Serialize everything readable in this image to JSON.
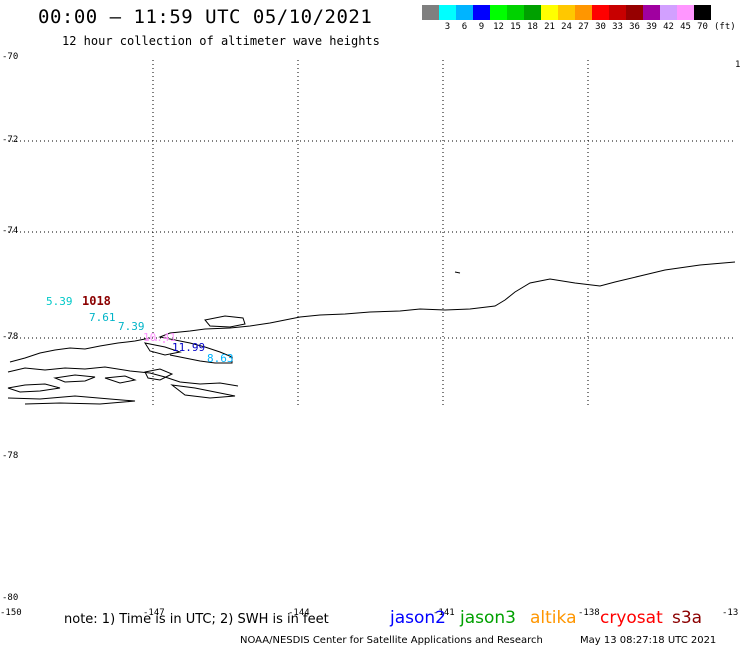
{
  "title": "00:00 – 11:59 UTC 05/10/2021",
  "subtitle": "12 hour collection of altimeter wave heights",
  "legend": {
    "colors": [
      "#7f7f7f",
      "#00ffff",
      "#00b4ff",
      "#0000ff",
      "#00ff00",
      "#00d200",
      "#00a000",
      "#ffff00",
      "#ffc800",
      "#ff9600",
      "#ff0000",
      "#c80000",
      "#960000",
      "#a000a0",
      "#d2a0ff",
      "#ff96ff",
      "#000000"
    ],
    "labels": [
      "",
      "3",
      "6",
      "9",
      "12",
      "15",
      "18",
      "21",
      "24",
      "27",
      "30",
      "33",
      "36",
      "39",
      "42",
      "45",
      "70"
    ],
    "unit": "(ft)"
  },
  "lat_labels": [
    "-70",
    "-72",
    "-74",
    "-76",
    "-78",
    "-78",
    "-80"
  ],
  "lon_labels": [
    "-150",
    "-147",
    "-144",
    "-141",
    "-138",
    "-13"
  ],
  "corner_label": "1",
  "observations": [
    {
      "value": "5.39",
      "color": "#00c8c8"
    },
    {
      "value": "1018",
      "color": "#8b0000"
    },
    {
      "value": "7.61",
      "color": "#00b4c8"
    },
    {
      "value": "7.39",
      "color": "#00b4c8"
    },
    {
      "value": "10.41",
      "color": "#ff96ff"
    },
    {
      "value": "11.99",
      "color": "#0000c8"
    },
    {
      "value": "8.63",
      "color": "#00b4ff"
    }
  ],
  "note": "note:  1) Time is in UTC;  2) SWH is in feet",
  "satellites": [
    {
      "name": "jason2",
      "color": "#0000ff"
    },
    {
      "name": "jason3",
      "color": "#00a000"
    },
    {
      "name": "altika",
      "color": "#ff9600"
    },
    {
      "name": "cryosat",
      "color": "#ff0000"
    },
    {
      "name": "s3a",
      "color": "#8b0000"
    }
  ],
  "footer": "NOAA/NESDIS Center for Satellite Applications and Research",
  "timestamp": "May 13 08:27:18 UTC 2021"
}
